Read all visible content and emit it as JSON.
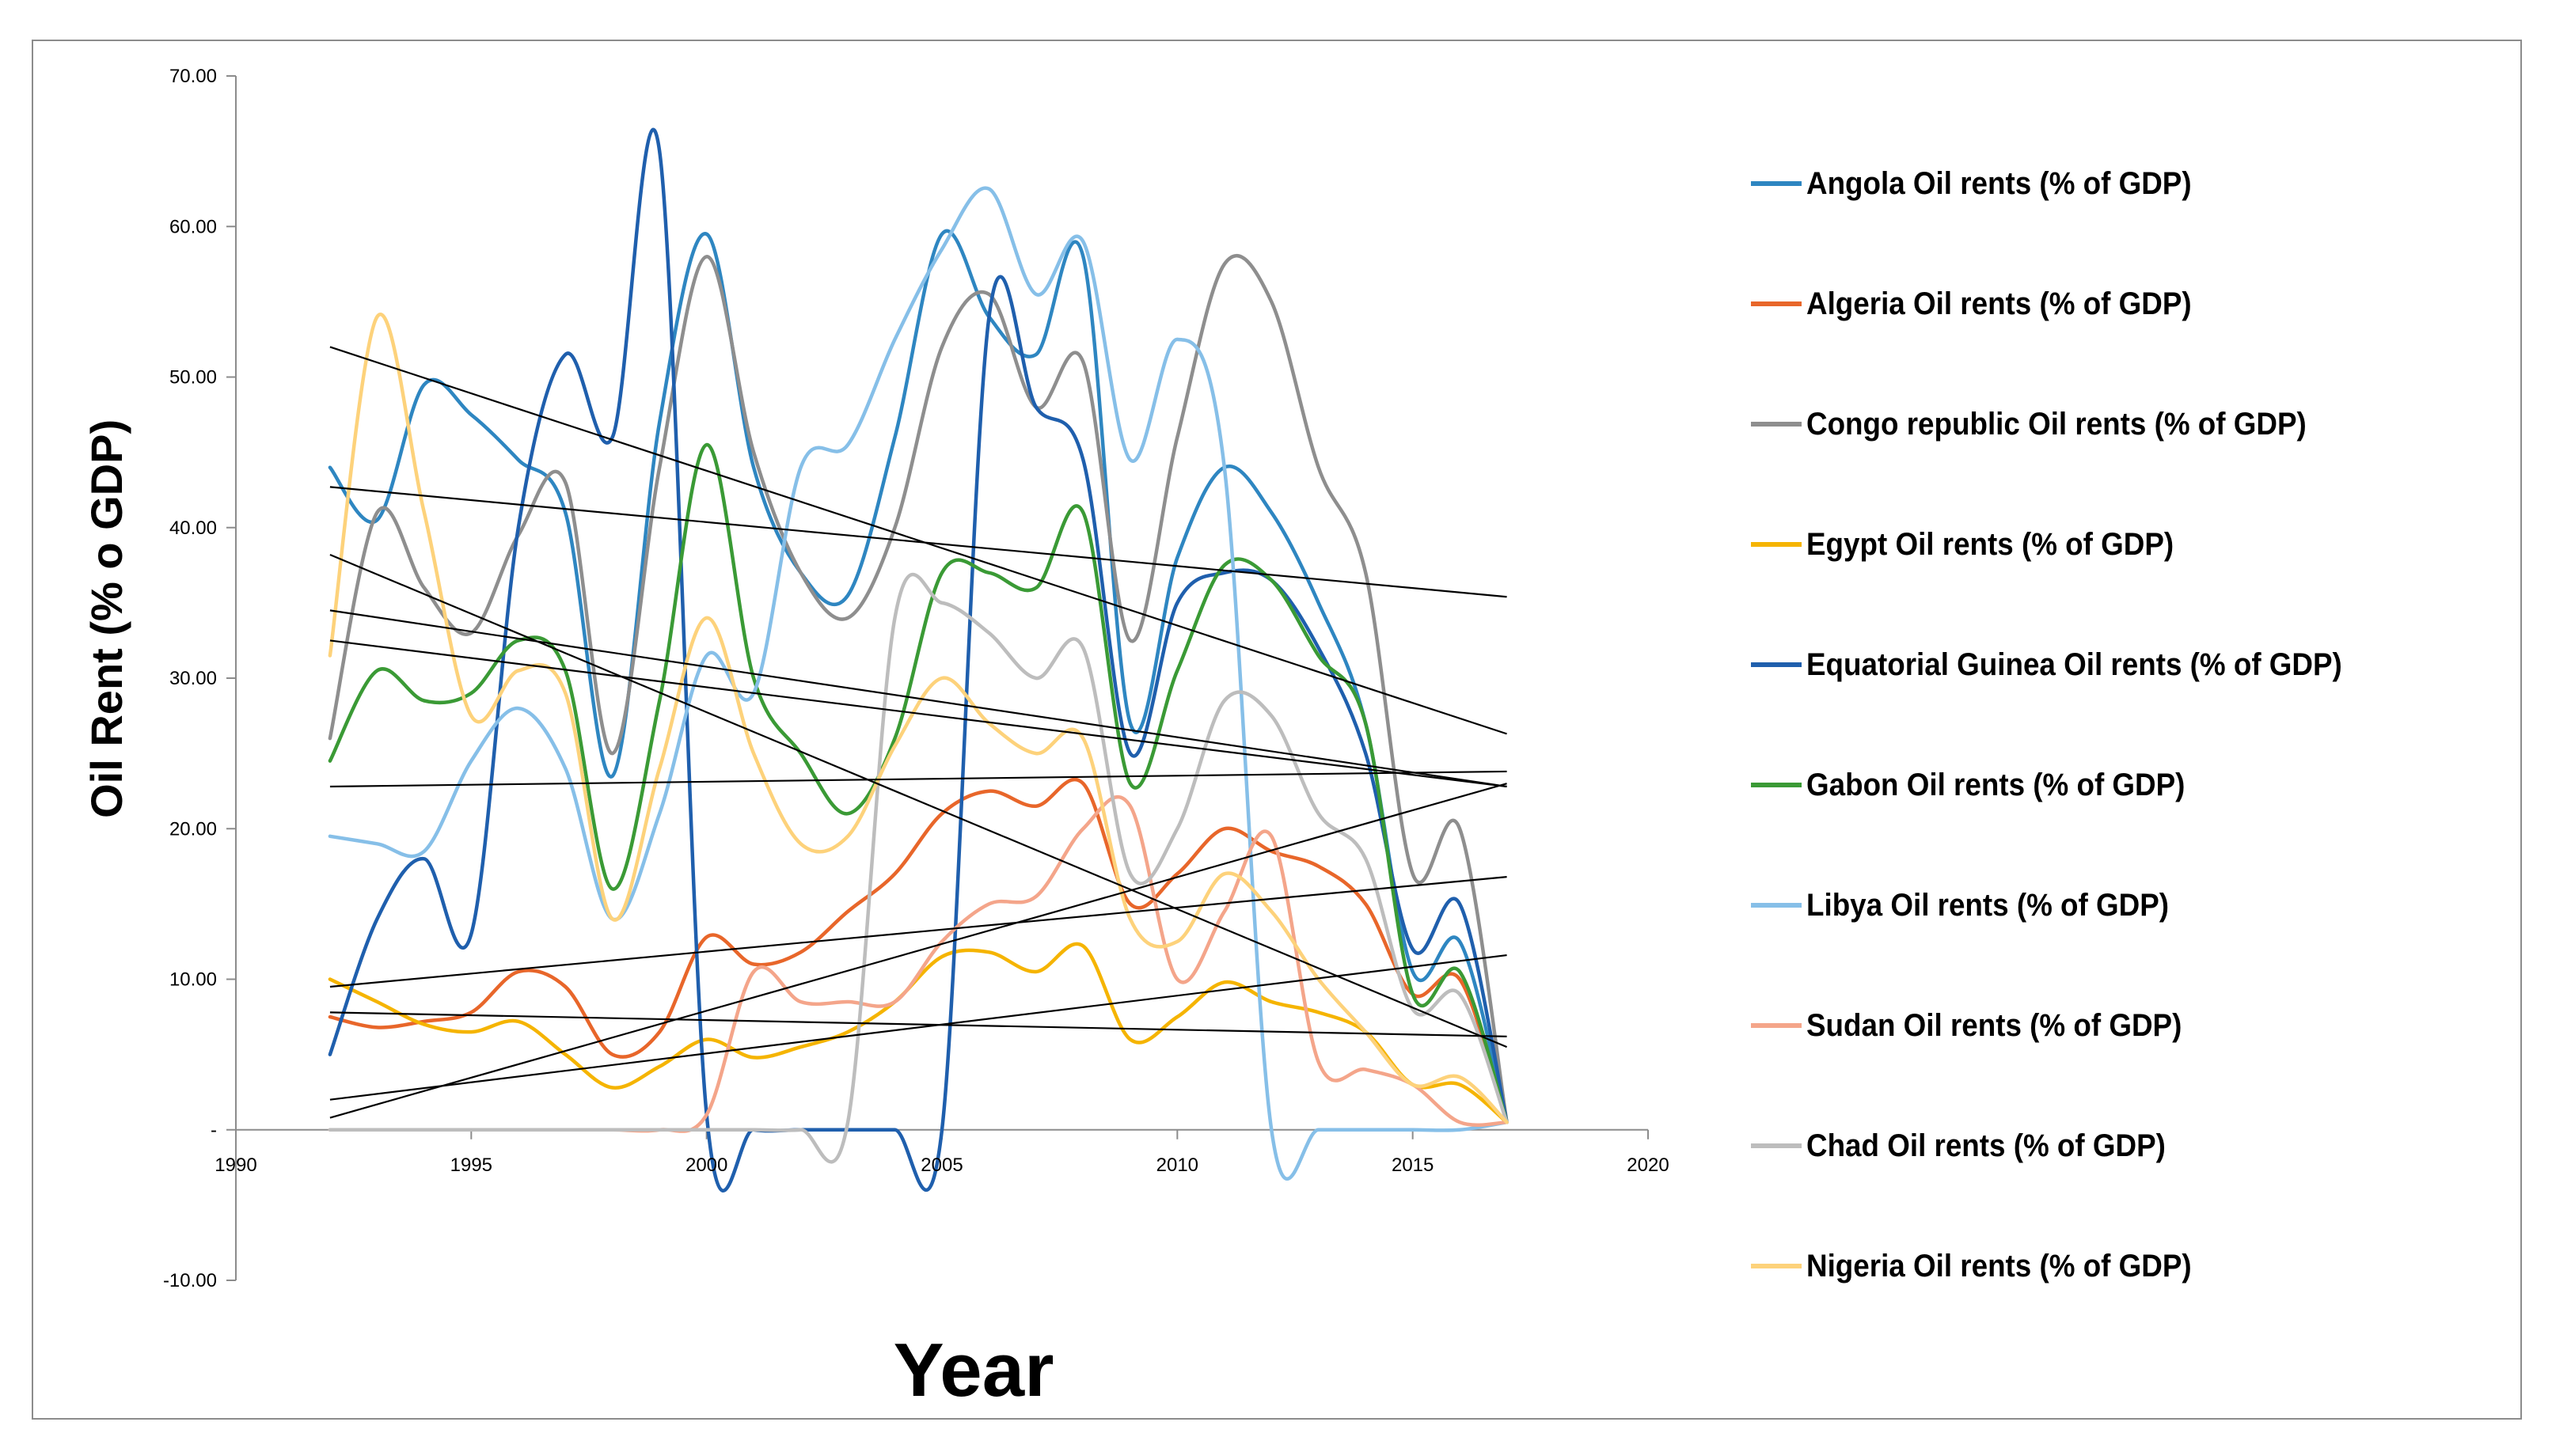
{
  "chart_data": {
    "type": "line",
    "title": "",
    "xlabel": "Year",
    "ylabel": "Oil Rent  (% o GDP)",
    "xlim": [
      1990,
      2020
    ],
    "ylim": [
      -10,
      70
    ],
    "xticks": [
      1990,
      1995,
      2000,
      2005,
      2010,
      2015,
      2020
    ],
    "yticks": [
      70,
      60,
      50,
      40,
      30,
      20,
      10,
      0,
      -10
    ],
    "ytick_labels": [
      "70.00",
      "60.00",
      "50.00",
      "40.00",
      "30.00",
      "20.00",
      "10.00",
      "-",
      "-10.00"
    ],
    "legend_position": "right",
    "x": [
      1992,
      1993,
      1994,
      1995,
      1996,
      1997,
      1998,
      1999,
      2000,
      2001,
      2002,
      2003,
      2004,
      2005,
      2006,
      2007,
      2008,
      2009,
      2010,
      2011,
      2012,
      2013,
      2014,
      2015,
      2016,
      2017
    ],
    "series": [
      {
        "name": "Angola Oil rents (% of GDP)",
        "color": "#2E86C1",
        "values": [
          44,
          40.5,
          49.5,
          47.5,
          44.5,
          41,
          23.5,
          47,
          59.5,
          44,
          37,
          35.5,
          46,
          59.5,
          54,
          51.5,
          58,
          27,
          38,
          44,
          41,
          35,
          27,
          10.5,
          12.5,
          0.5
        ]
      },
      {
        "name": "Algeria Oil rents (% of GDP)",
        "color": "#E8662A",
        "values": [
          7.5,
          6.8,
          7.2,
          7.8,
          10.5,
          9.5,
          5.0,
          6.5,
          12.8,
          11.0,
          11.8,
          14.5,
          17.0,
          21.0,
          22.5,
          21.5,
          23.0,
          15.0,
          17.0,
          20.0,
          18.5,
          17.5,
          15.0,
          9.0,
          10.0,
          0.5
        ]
      },
      {
        "name": "Congo republic Oil rents (% of GDP)",
        "color": "#8E8E8E",
        "values": [
          26,
          41,
          36,
          33,
          39.5,
          43,
          25,
          44,
          58,
          45,
          37,
          34,
          40,
          52,
          55.5,
          48,
          51,
          32.5,
          46,
          57.5,
          55,
          44,
          37,
          17,
          20,
          0.5
        ]
      },
      {
        "name": "Egypt Oil rents (% of GDP)",
        "color": "#F5B400",
        "values": [
          10,
          8.5,
          7,
          6.5,
          7.2,
          5,
          2.8,
          4.2,
          6.0,
          4.8,
          5.5,
          6.5,
          8.5,
          11.5,
          11.8,
          10.5,
          12.2,
          6,
          7.5,
          9.8,
          8.5,
          7.8,
          6.5,
          3,
          3,
          0.5
        ]
      },
      {
        "name": "Equatorial Guinea Oil rents (% of GDP)",
        "color": "#1F5FAD",
        "values": [
          5,
          14,
          18,
          13,
          40,
          51.5,
          46,
          65,
          1,
          0,
          0,
          0,
          0,
          0,
          54,
          48,
          44.5,
          25,
          35,
          37,
          36.5,
          32,
          25,
          12,
          15,
          0.5
        ]
      },
      {
        "name": "Gabon Oil rents (% of GDP)",
        "color": "#3A9A35",
        "values": [
          24.5,
          30.5,
          28.5,
          29,
          32.5,
          30.5,
          16,
          28.5,
          45.5,
          30,
          25,
          21,
          26,
          37,
          37,
          36,
          41,
          23,
          30.5,
          37.5,
          36.5,
          31.5,
          27,
          9,
          10.5,
          0.5
        ]
      },
      {
        "name": "Libya Oil rents (% of GDP)",
        "color": "#86BFE8",
        "values": [
          19.5,
          19,
          18.5,
          24.5,
          28,
          24,
          14,
          21,
          31.5,
          29,
          44,
          45.5,
          52.5,
          58.5,
          62.5,
          55.5,
          59,
          44.5,
          52.5,
          44,
          0,
          0,
          0,
          0,
          0,
          0.5
        ]
      },
      {
        "name": "Sudan Oil rents (% of GDP)",
        "color": "#F4A58A",
        "values": [
          0,
          0,
          0,
          0,
          0,
          0,
          0,
          0,
          1,
          10.5,
          8.5,
          8.5,
          8.5,
          12.5,
          15,
          15.5,
          20,
          21.5,
          10,
          14.5,
          19.5,
          4.5,
          4,
          3,
          0.5,
          0.5
        ]
      },
      {
        "name": "Chad Oil rents (% of GDP)",
        "color": "#BDBDBD",
        "values": [
          0,
          0,
          0,
          0,
          0,
          0,
          0,
          0,
          0,
          0,
          0,
          0.5,
          34,
          35,
          33,
          30,
          32,
          17,
          20,
          28.5,
          27.5,
          21,
          18,
          8,
          9,
          0.5
        ]
      },
      {
        "name": "Nigeria Oil rents (% of GDP)",
        "color": "#FDD27B",
        "values": [
          31.5,
          54,
          41,
          27.5,
          30.5,
          29,
          14,
          24,
          34,
          25,
          19,
          19.5,
          25.5,
          30,
          27,
          25,
          26,
          14,
          12.5,
          17,
          14.5,
          10,
          6.5,
          3,
          3.5,
          0.5
        ]
      }
    ],
    "trendlines": [
      {
        "color": "#000000",
        "x": [
          1992,
          2017
        ],
        "y": [
          52,
          26.3
        ]
      },
      {
        "color": "#000000",
        "x": [
          1992,
          2017
        ],
        "y": [
          42.7,
          35.4
        ]
      },
      {
        "color": "#000000",
        "x": [
          1992,
          2017
        ],
        "y": [
          38.2,
          5.5
        ]
      },
      {
        "color": "#000000",
        "x": [
          1992,
          2017
        ],
        "y": [
          34.5,
          22.8
        ]
      },
      {
        "color": "#000000",
        "x": [
          1992,
          2017
        ],
        "y": [
          32.5,
          22.8
        ]
      },
      {
        "color": "#000000",
        "x": [
          1992,
          2017
        ],
        "y": [
          22.8,
          23.8
        ]
      },
      {
        "color": "#000000",
        "x": [
          1992,
          2017
        ],
        "y": [
          9.5,
          16.8
        ]
      },
      {
        "color": "#000000",
        "x": [
          1992,
          2017
        ],
        "y": [
          7.8,
          6.2
        ]
      },
      {
        "color": "#000000",
        "x": [
          1992,
          2017
        ],
        "y": [
          2.0,
          11.6
        ]
      },
      {
        "color": "#000000",
        "x": [
          1992,
          2017
        ],
        "y": [
          0.8,
          23.0
        ]
      }
    ]
  }
}
